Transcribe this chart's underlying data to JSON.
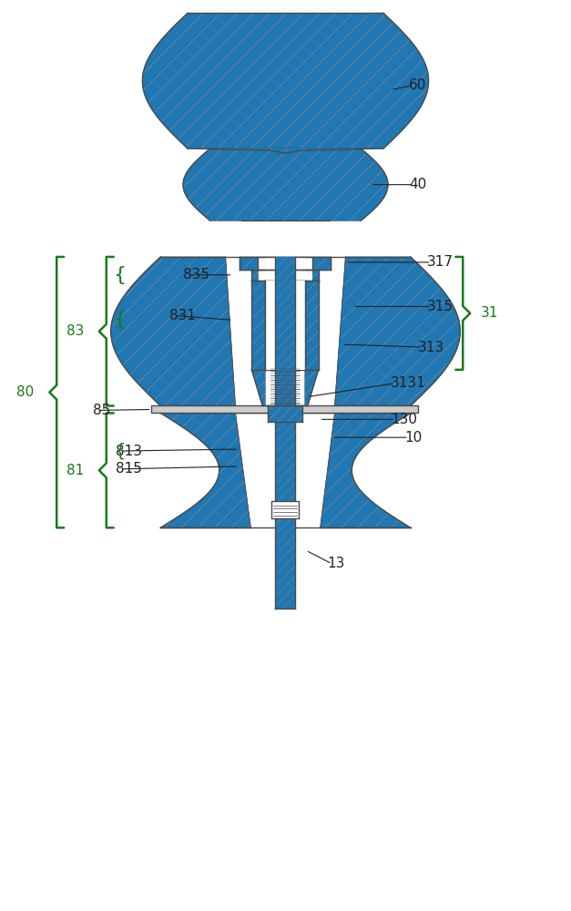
{
  "bg_color": "#ffffff",
  "lc": "#4a4a4a",
  "hc": "#888888",
  "gc": "#1a7a1a",
  "lw": 1.0,
  "lw_thin": 0.6,
  "fs": 11,
  "figsize": [
    6.27,
    10.0
  ],
  "dpi": 100
}
